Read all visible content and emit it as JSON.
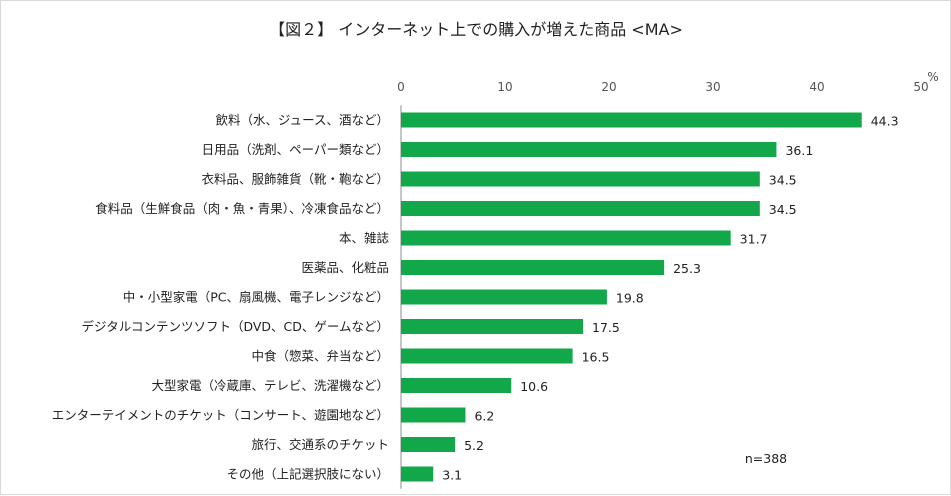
{
  "chart_data": {
    "type": "bar",
    "orientation": "horizontal",
    "title": "【図２】 インターネット上での購入が増えた商品 <MA>",
    "unit_label": "%",
    "note": "n=388",
    "xlim": [
      0,
      50
    ],
    "x_ticks": [
      0,
      10,
      20,
      30,
      40,
      50
    ],
    "grid": false,
    "bar_color": "#12a84a",
    "categories": [
      "飲料（水、ジュース、酒など）",
      "日用品（洗剤、ペーパー類など）",
      "衣料品、服飾雑貨（靴・鞄など）",
      "食料品（生鮮食品（肉・魚・青果）、冷凍食品など）",
      "本、雑誌",
      "医薬品、化粧品",
      "中・小型家電（PC、扇風機、電子レンジなど）",
      "デジタルコンテンツソフト（DVD、CD、ゲームなど）",
      "中食（惣菜、弁当など）",
      "大型家電（冷蔵庫、テレビ、洗濯機など）",
      "エンターテイメントのチケット（コンサート、遊園地など）",
      "旅行、交通系のチケット",
      "その他（上記選択肢にない）"
    ],
    "values": [
      44.3,
      36.1,
      34.5,
      34.5,
      31.7,
      25.3,
      19.8,
      17.5,
      16.5,
      10.6,
      6.2,
      5.2,
      3.1
    ]
  }
}
